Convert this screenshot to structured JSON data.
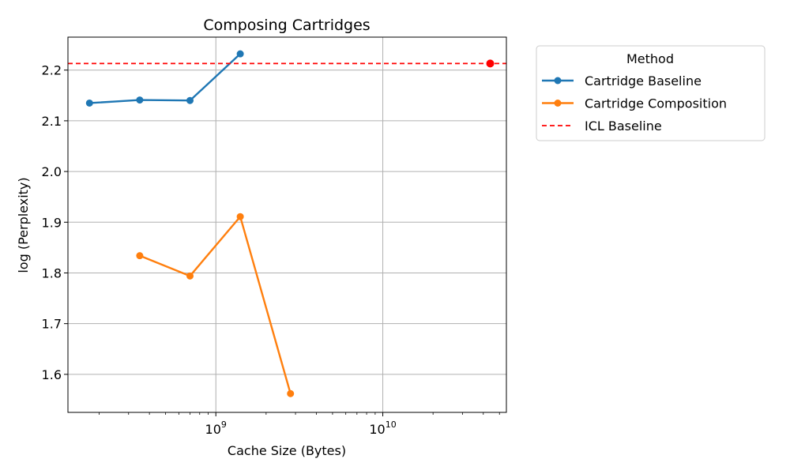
{
  "chart_data": {
    "type": "line",
    "title": "Composing Cartridges",
    "xlabel": "Cache Size (Bytes)",
    "ylabel": "log (Perplexity)",
    "xscale": "log",
    "xlim": [
      130000000,
      55000000000
    ],
    "ylim": [
      1.525,
      2.265
    ],
    "x_ticks": [
      {
        "value": 1000000000,
        "base": "10",
        "exp": "9"
      },
      {
        "value": 10000000000,
        "base": "10",
        "exp": "10"
      }
    ],
    "y_ticks": [
      "1.6",
      "1.7",
      "1.8",
      "1.9",
      "2.0",
      "2.1",
      "2.2"
    ],
    "grid": true,
    "legend_position": "outside-right",
    "legend_title": "Method",
    "series": [
      {
        "name": "Cartridge Baseline",
        "color": "#1f77b4",
        "style": "line-marker",
        "x": [
          175000000,
          350000000,
          700000000,
          1400000000
        ],
        "y": [
          2.135,
          2.141,
          2.14,
          2.232
        ]
      },
      {
        "name": "Cartridge Composition",
        "color": "#ff7f0e",
        "style": "line-marker",
        "x": [
          350000000,
          700000000,
          1400000000,
          2800000000
        ],
        "y": [
          1.834,
          1.794,
          1.911,
          1.562
        ]
      },
      {
        "name": "ICL Baseline",
        "color": "#ff0000",
        "style": "dashed-hline",
        "y": 2.213,
        "marker_x": 44000000000
      }
    ]
  }
}
